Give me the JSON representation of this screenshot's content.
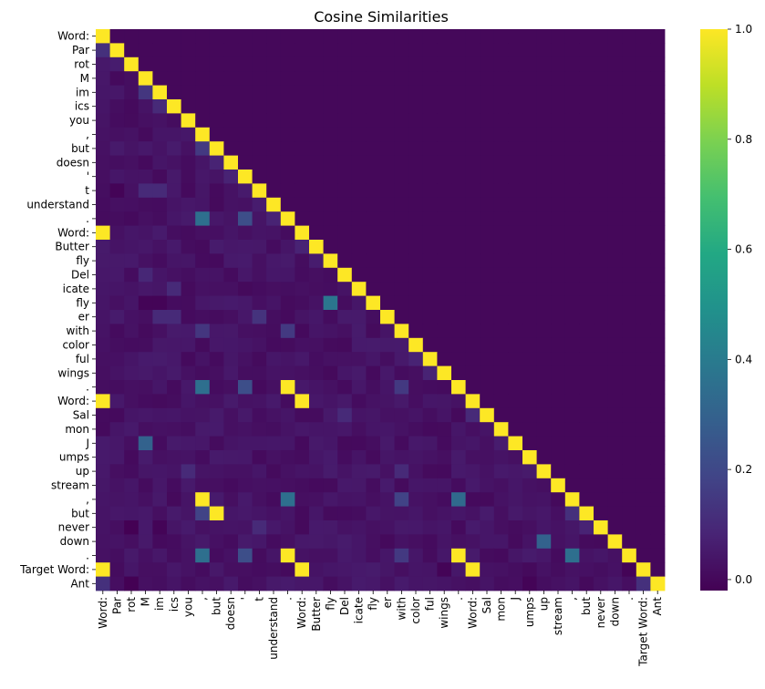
{
  "chart_data": {
    "type": "heatmap",
    "title": "Cosine Similarities",
    "xlabel": "",
    "ylabel": "",
    "tokens": [
      "Word:",
      "Par",
      "rot",
      "M",
      "im",
      "ics",
      "you",
      ",",
      "but",
      "doesn",
      "'",
      "t",
      "understand",
      ".",
      "Word:",
      "Butter",
      "fly",
      "Del",
      "icate",
      "fly",
      "er",
      "with",
      "color",
      "ful",
      "wings",
      ".",
      "Word:",
      "Sal",
      "mon",
      "J",
      "umps",
      "up",
      "stream",
      ",",
      "but",
      "never",
      "down",
      ".",
      "Target Word:",
      "Ant"
    ],
    "colormap": "viridis",
    "vmin": -0.02,
    "vmax": 1.0,
    "colorbar_ticks": [
      0.0,
      0.2,
      0.4,
      0.6,
      0.8,
      1.0
    ],
    "colorbar_tick_labels": [
      "0.0",
      "0.2",
      "0.4",
      "0.6",
      "0.8",
      "1.0"
    ],
    "default_lower_value": 0.03,
    "upper_triangle_value": 0.0,
    "diagonal_value": 1.0,
    "highlighted_cells": [
      {
        "row": 14,
        "col": 0,
        "value": 1.0
      },
      {
        "row": 26,
        "col": 0,
        "value": 1.0
      },
      {
        "row": 38,
        "col": 0,
        "value": 1.0
      },
      {
        "row": 26,
        "col": 14,
        "value": 1.0
      },
      {
        "row": 38,
        "col": 14,
        "value": 1.0
      },
      {
        "row": 38,
        "col": 26,
        "value": 1.0
      },
      {
        "row": 25,
        "col": 13,
        "value": 1.0
      },
      {
        "row": 37,
        "col": 13,
        "value": 1.0
      },
      {
        "row": 37,
        "col": 25,
        "value": 1.0
      },
      {
        "row": 33,
        "col": 7,
        "value": 1.0
      },
      {
        "row": 34,
        "col": 8,
        "value": 1.0
      },
      {
        "row": 13,
        "col": 7,
        "value": 0.35
      },
      {
        "row": 25,
        "col": 7,
        "value": 0.35
      },
      {
        "row": 37,
        "col": 7,
        "value": 0.35
      },
      {
        "row": 33,
        "col": 13,
        "value": 0.35
      },
      {
        "row": 33,
        "col": 25,
        "value": 0.33
      },
      {
        "row": 37,
        "col": 33,
        "value": 0.35
      },
      {
        "row": 13,
        "col": 10,
        "value": 0.22
      },
      {
        "row": 25,
        "col": 10,
        "value": 0.22
      },
      {
        "row": 37,
        "col": 10,
        "value": 0.22
      },
      {
        "row": 19,
        "col": 16,
        "value": 0.38
      },
      {
        "row": 29,
        "col": 3,
        "value": 0.3
      },
      {
        "row": 36,
        "col": 31,
        "value": 0.3
      },
      {
        "row": 34,
        "col": 7,
        "value": 0.18
      },
      {
        "row": 8,
        "col": 7,
        "value": 0.15
      },
      {
        "row": 21,
        "col": 7,
        "value": 0.14
      },
      {
        "row": 21,
        "col": 13,
        "value": 0.15
      },
      {
        "row": 25,
        "col": 21,
        "value": 0.15
      },
      {
        "row": 33,
        "col": 21,
        "value": 0.18
      },
      {
        "row": 37,
        "col": 21,
        "value": 0.15
      },
      {
        "row": 4,
        "col": 3,
        "value": 0.14
      },
      {
        "row": 20,
        "col": 11,
        "value": 0.13
      },
      {
        "row": 1,
        "col": 0,
        "value": 0.12
      },
      {
        "row": 39,
        "col": 0,
        "value": 0.12
      },
      {
        "row": 39,
        "col": 38,
        "value": 0.12
      },
      {
        "row": 5,
        "col": 4,
        "value": 0.1
      },
      {
        "row": 18,
        "col": 5,
        "value": 0.1
      },
      {
        "row": 11,
        "col": 3,
        "value": 0.1
      },
      {
        "row": 11,
        "col": 4,
        "value": 0.1
      },
      {
        "row": 20,
        "col": 4,
        "value": 0.1
      },
      {
        "row": 20,
        "col": 5,
        "value": 0.1
      },
      {
        "row": 31,
        "col": 6,
        "value": 0.1
      },
      {
        "row": 35,
        "col": 11,
        "value": 0.1
      },
      {
        "row": 17,
        "col": 3,
        "value": 0.09
      },
      {
        "row": 31,
        "col": 21,
        "value": 0.1
      },
      {
        "row": 27,
        "col": 17,
        "value": 0.1
      },
      {
        "row": 23,
        "col": 22,
        "value": 0.08
      },
      {
        "row": 24,
        "col": 23,
        "value": 0.08
      },
      {
        "row": 27,
        "col": 26,
        "value": 0.1
      },
      {
        "row": 34,
        "col": 33,
        "value": 0.12
      },
      {
        "row": 35,
        "col": 34,
        "value": 0.08
      },
      {
        "row": 9,
        "col": 8,
        "value": 0.08
      },
      {
        "row": 10,
        "col": 9,
        "value": 0.08
      },
      {
        "row": 13,
        "col": 12,
        "value": 0.08
      },
      {
        "row": 15,
        "col": 14,
        "value": 0.08
      },
      {
        "row": 2,
        "col": 1,
        "value": 0.06
      },
      {
        "row": 29,
        "col": 28,
        "value": 0.06
      },
      {
        "row": 12,
        "col": 11,
        "value": 0.06
      },
      {
        "row": 16,
        "col": 15,
        "value": 0.06
      },
      {
        "row": 39,
        "col": 2,
        "value": -0.02
      },
      {
        "row": 35,
        "col": 2,
        "value": -0.02
      },
      {
        "row": 35,
        "col": 4,
        "value": -0.01
      },
      {
        "row": 19,
        "col": 3,
        "value": -0.01
      },
      {
        "row": 19,
        "col": 4,
        "value": -0.01
      },
      {
        "row": 38,
        "col": 24,
        "value": -0.01
      },
      {
        "row": 38,
        "col": 37,
        "value": -0.01
      },
      {
        "row": 11,
        "col": 1,
        "value": -0.01
      },
      {
        "row": 39,
        "col": 30,
        "value": -0.01
      }
    ]
  }
}
